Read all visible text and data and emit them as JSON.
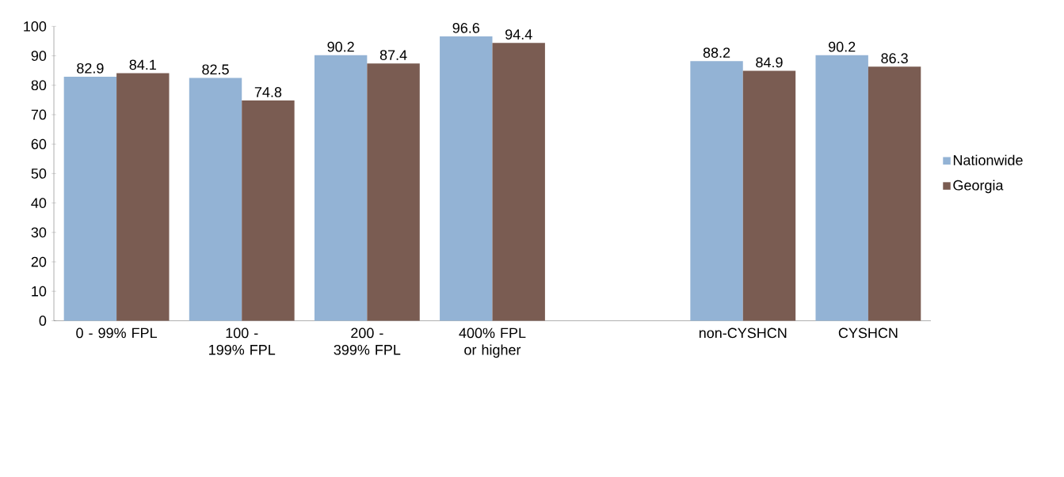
{
  "chart_data": {
    "type": "bar",
    "categories": [
      "0 - 99% FPL",
      "100 - 199% FPL",
      "200 - 399% FPL",
      "400% FPL or higher",
      null,
      "non-CYSHCN",
      "CYSHCN"
    ],
    "series": [
      {
        "name": "Nationwide",
        "color": "#93b3d5",
        "values": [
          82.9,
          82.5,
          90.2,
          96.6,
          null,
          88.2,
          90.2
        ]
      },
      {
        "name": "Georgia",
        "color": "#7a5c52",
        "values": [
          84.1,
          74.8,
          87.4,
          94.4,
          null,
          84.9,
          86.3
        ]
      }
    ],
    "ylim": [
      0,
      100
    ],
    "yticks": [
      0,
      10,
      20,
      30,
      40,
      50,
      60,
      70,
      80,
      90,
      100
    ],
    "data_labels": true,
    "legend": "right",
    "grid": false
  }
}
